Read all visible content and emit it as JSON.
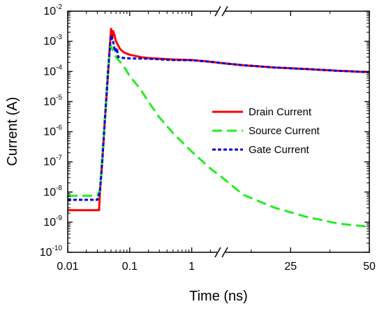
{
  "chart_data": {
    "type": "line",
    "title": "",
    "xlabel": "Time (ns)",
    "ylabel": "Current (A)",
    "y_scale": "log",
    "ylim": [
      1e-10,
      0.01
    ],
    "y_ticks": [
      {
        "base": "10",
        "exp": "-2"
      },
      {
        "base": "10",
        "exp": "-3"
      },
      {
        "base": "10",
        "exp": "-4"
      },
      {
        "base": "10",
        "exp": "-5"
      },
      {
        "base": "10",
        "exp": "-6"
      },
      {
        "base": "10",
        "exp": "-7"
      },
      {
        "base": "10",
        "exp": "-8"
      },
      {
        "base": "10",
        "exp": "-9"
      },
      {
        "base": "10",
        "exp": "-10"
      }
    ],
    "x_scale": "broken: log from 0.01 to 3 ns, then linear from 3 to 50 ns",
    "x_ticks": [
      "0.01",
      "0.1",
      "1",
      "25",
      "50"
    ],
    "axis_break": "//",
    "legend_position": "center-right",
    "grid": false,
    "series": [
      {
        "name": "Drain Current",
        "color": "#ff0000",
        "dash": "solid",
        "points": [
          [
            0.01,
            2.5e-09
          ],
          [
            0.032,
            2.5e-09
          ],
          [
            0.033,
            1e-08
          ],
          [
            0.036,
            1e-07
          ],
          [
            0.04,
            3e-06
          ],
          [
            0.045,
            0.0001
          ],
          [
            0.048,
            0.0008
          ],
          [
            0.05,
            0.0026
          ],
          [
            0.052,
            0.0012
          ],
          [
            0.054,
            0.0022
          ],
          [
            0.056,
            0.0018
          ],
          [
            0.06,
            0.001
          ],
          [
            0.07,
            0.00055
          ],
          [
            0.08,
            0.00043
          ],
          [
            0.1,
            0.00036
          ],
          [
            0.15,
            0.0003
          ],
          [
            0.2,
            0.00028
          ],
          [
            0.5,
            0.00025
          ],
          [
            1,
            0.00024
          ],
          [
            2,
            0.00021
          ],
          [
            3,
            0.00019
          ],
          [
            10,
            0.00016
          ],
          [
            20,
            0.000135
          ],
          [
            30,
            0.00012
          ],
          [
            40,
            0.000105
          ],
          [
            50,
            9.5e-05
          ]
        ]
      },
      {
        "name": "Source Current",
        "color": "#22ee22",
        "dash": "long-dash",
        "points": [
          [
            0.01,
            7.5e-09
          ],
          [
            0.03,
            7.5e-09
          ],
          [
            0.033,
            1.2e-08
          ],
          [
            0.036,
            1.5e-07
          ],
          [
            0.04,
            4e-06
          ],
          [
            0.045,
            0.00015
          ],
          [
            0.048,
            0.0005
          ],
          [
            0.05,
            0.0007
          ],
          [
            0.055,
            0.00045
          ],
          [
            0.06,
            0.0003
          ],
          [
            0.08,
            0.00015
          ],
          [
            0.1,
            7e-05
          ],
          [
            0.15,
            2.5e-05
          ],
          [
            0.2,
            1e-05
          ],
          [
            0.3,
            3e-06
          ],
          [
            0.5,
            9e-07
          ],
          [
            1,
            2.2e-07
          ],
          [
            2,
            6e-08
          ],
          [
            3,
            3.2e-08
          ],
          [
            10,
            8e-09
          ],
          [
            20,
            3e-09
          ],
          [
            30,
            1.5e-09
          ],
          [
            40,
            9e-10
          ],
          [
            50,
            7e-10
          ]
        ]
      },
      {
        "name": "Gate Current",
        "color": "#0000dd",
        "dash": "short-dash",
        "points": [
          [
            0.01,
            5.5e-09
          ],
          [
            0.03,
            5.5e-09
          ],
          [
            0.033,
            1e-08
          ],
          [
            0.036,
            1e-07
          ],
          [
            0.04,
            3e-06
          ],
          [
            0.045,
            0.00012
          ],
          [
            0.048,
            0.0007
          ],
          [
            0.05,
            0.0016
          ],
          [
            0.053,
            0.0012
          ],
          [
            0.055,
            0.0008
          ],
          [
            0.058,
            0.00045
          ],
          [
            0.062,
            0.0006
          ],
          [
            0.065,
            0.0003
          ],
          [
            0.08,
            0.00028
          ],
          [
            0.1,
            0.00027
          ],
          [
            0.2,
            0.000265
          ],
          [
            0.5,
            0.00024
          ],
          [
            1,
            0.000235
          ],
          [
            2,
            0.00021
          ],
          [
            3,
            0.00019
          ],
          [
            10,
            0.00016
          ],
          [
            20,
            0.000135
          ],
          [
            30,
            0.00012
          ],
          [
            40,
            0.000105
          ],
          [
            50,
            9.5e-05
          ]
        ]
      }
    ]
  }
}
